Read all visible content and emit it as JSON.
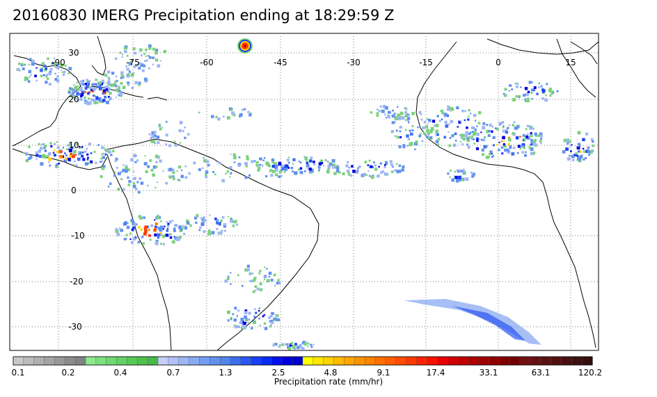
{
  "title": "20160830 IMERG Precipitation ending at 18:29:59 Z",
  "map": {
    "lon_labels": [
      "-90",
      "-75",
      "-60",
      "-45",
      "-30",
      "-15",
      "0",
      "15"
    ],
    "lat_labels": [
      "30",
      "20",
      "10",
      "0",
      "-10",
      "-20",
      "-30"
    ]
  },
  "colorbar": {
    "title": "Precipitation rate (mm/hr)",
    "tick_labels": [
      "0.1",
      "0.2",
      "0.4",
      "0.7",
      "1.3",
      "2.5",
      "4.8",
      "9.1",
      "17.4",
      "33.1",
      "63.1",
      "120.2"
    ],
    "colors": [
      "#c8c8c8",
      "#bcbcbc",
      "#b0b0b0",
      "#a4a4a4",
      "#989898",
      "#8c8c8c",
      "#828282",
      "#8ee88e",
      "#7ee07e",
      "#70d870",
      "#62d062",
      "#58c858",
      "#50c050",
      "#48b848",
      "#c6cef8",
      "#b2c2f6",
      "#9eb6f4",
      "#8aaaf2",
      "#769ef0",
      "#6292ee",
      "#5086ea",
      "#3c6ef0",
      "#2a56f2",
      "#1840f2",
      "#0a2af0",
      "#0010ee",
      "#0000e0",
      "#0000d0",
      "#ffff00",
      "#ffe800",
      "#ffd200",
      "#ffbc00",
      "#ffa600",
      "#ff9400",
      "#ff8200",
      "#ff7000",
      "#ff5e00",
      "#ff4c00",
      "#ff3a00",
      "#ff2200",
      "#f81000",
      "#e80000",
      "#d00000",
      "#c00000",
      "#b00000",
      "#a00000",
      "#900000",
      "#800000",
      "#700000",
      "#701010",
      "#661010",
      "#5c1010",
      "#521010",
      "#481010",
      "#3e1010",
      "#341010"
    ]
  }
}
